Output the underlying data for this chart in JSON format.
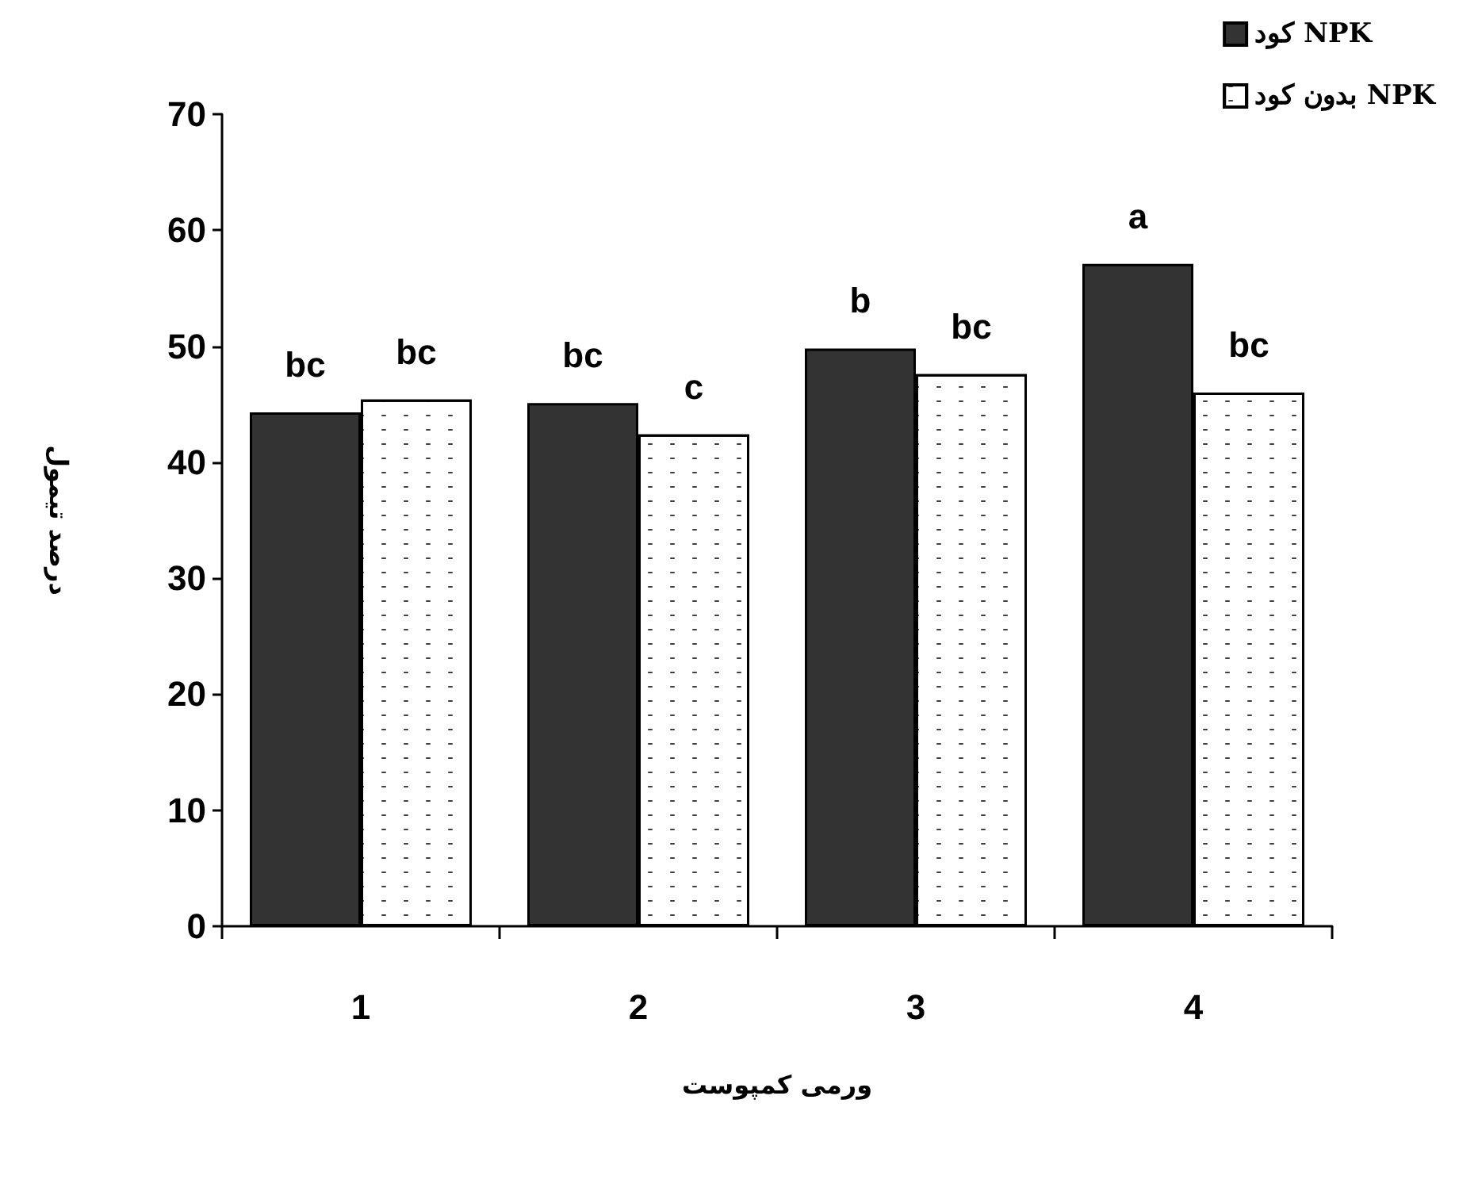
{
  "chart_data": {
    "type": "bar",
    "xlabel": "ورمی کمپوست",
    "ylabel": "درصد تیمول",
    "categories": [
      "1",
      "2",
      "3",
      "4"
    ],
    "series": [
      {
        "name": "کود NPK",
        "color": "#333333",
        "values": [
          44.3,
          45.1,
          49.8,
          57.1
        ]
      },
      {
        "name": "بدون کود NPK",
        "color": "#ffffff",
        "values": [
          45.4,
          42.4,
          47.6,
          46.0
        ]
      }
    ],
    "ylim": [
      0,
      70
    ],
    "yticks": [
      0,
      10,
      20,
      30,
      40,
      50,
      60,
      70
    ],
    "grid": false,
    "legend": "top right",
    "annotations": [
      {
        "text": "bc",
        "x": "1",
        "y": 44.3
      },
      {
        "text": "bc",
        "x": "1",
        "y": 45.4
      },
      {
        "text": "bc",
        "x": "2",
        "y": 45.1
      },
      {
        "text": "c",
        "x": "2",
        "y": 42.4
      },
      {
        "text": "b",
        "x": "3",
        "y": 49.8
      },
      {
        "text": "bc",
        "x": "3",
        "y": 47.6
      },
      {
        "text": "a",
        "x": "4",
        "y": 57.1
      },
      {
        "text": "bc",
        "x": "4",
        "y": 46.0
      }
    ]
  }
}
